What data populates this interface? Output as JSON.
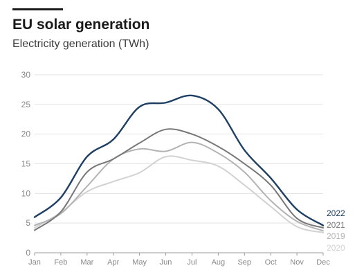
{
  "header": {
    "title": "EU solar generation",
    "subtitle": "Electricity generation (TWh)"
  },
  "chart_data": {
    "type": "line",
    "title": "EU solar generation",
    "subtitle": "Electricity generation (TWh)",
    "xlabel": "",
    "ylabel": "",
    "categories": [
      "Jan",
      "Feb",
      "Mar",
      "Apr",
      "May",
      "Jun",
      "Jul",
      "Aug",
      "Sep",
      "Oct",
      "Nov",
      "Dec"
    ],
    "yticks": [
      0,
      5,
      10,
      15,
      20,
      25,
      30
    ],
    "ylim": [
      0,
      30
    ],
    "grid": "horizontal",
    "legend": "right-end labels",
    "series": [
      {
        "name": "2020",
        "color": "#d2d2d2",
        "values": [
          4.2,
          6.8,
          10.3,
          12.0,
          13.5,
          16.2,
          15.6,
          14.6,
          11.4,
          7.8,
          4.4,
          3.4
        ]
      },
      {
        "name": "2019",
        "color": "#b3b3b3",
        "values": [
          4.6,
          6.6,
          11.2,
          15.8,
          17.5,
          17.1,
          18.6,
          16.8,
          13.6,
          8.8,
          5.3,
          3.7
        ]
      },
      {
        "name": "2021",
        "color": "#777777",
        "values": [
          3.8,
          6.9,
          13.6,
          15.8,
          18.5,
          20.8,
          20.0,
          17.9,
          15.0,
          11.4,
          5.8,
          4.2
        ]
      },
      {
        "name": "2022",
        "color": "#1d3f63",
        "values": [
          6.0,
          9.3,
          16.2,
          19.1,
          24.6,
          25.3,
          26.5,
          24.2,
          17.3,
          12.6,
          7.3,
          4.6
        ]
      }
    ]
  }
}
